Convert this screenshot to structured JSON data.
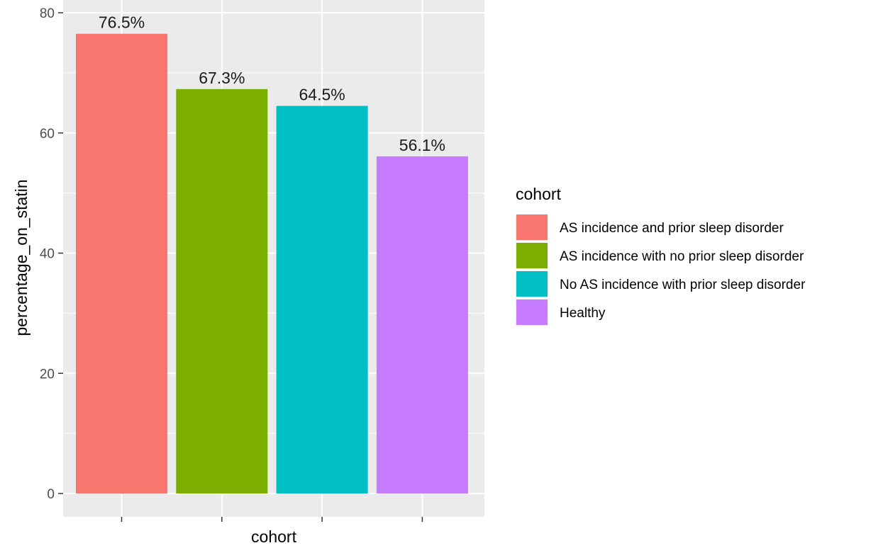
{
  "chart_data": {
    "type": "bar",
    "xlabel": "cohort",
    "ylabel": "percentage_on_statin",
    "ylim": [
      0,
      80
    ],
    "yticks": [
      0,
      20,
      40,
      60,
      80
    ],
    "categories": [
      "AS incidence and prior sleep disorder",
      "AS incidence with no prior sleep disorder",
      "No AS incidence with prior sleep disorder",
      "Healthy"
    ],
    "values": [
      76.5,
      67.3,
      64.5,
      56.1
    ],
    "data_labels": [
      "76.5%",
      "67.3%",
      "64.5%",
      "56.1%"
    ],
    "colors": [
      "#F8766D",
      "#7CAE00",
      "#00BFC4",
      "#C77CFF"
    ],
    "legend": {
      "title": "cohort",
      "position": "right",
      "entries": [
        "AS incidence and prior sleep disorder",
        "AS incidence with no prior sleep disorder",
        "No AS incidence with prior sleep disorder",
        "Healthy"
      ]
    },
    "grid": true,
    "panel_background": "#EBEBEB"
  }
}
